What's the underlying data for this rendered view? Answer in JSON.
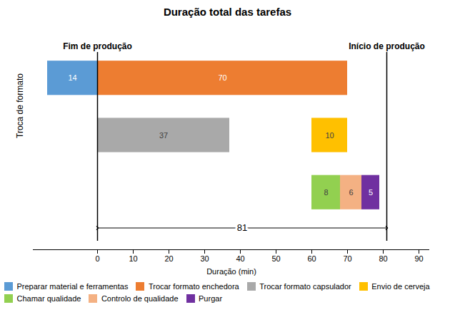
{
  "chart_data": {
    "type": "bar",
    "orientation": "horizontal",
    "title": "Duração total das tarefas",
    "xlabel": "Duração (min)",
    "ylabel": "Troca de formato",
    "categories": [
      null,
      null,
      null
    ],
    "xlim": [
      -18,
      93
    ],
    "xticks": [
      0,
      10,
      20,
      30,
      40,
      50,
      60,
      70,
      80,
      90
    ],
    "data_labels": true,
    "legend": "bottom",
    "series": [
      {
        "name": "Preparar material e ferramentas",
        "color": "#5B9BD5",
        "starts": [
          -14,
          null,
          null
        ],
        "values": [
          14,
          null,
          null
        ]
      },
      {
        "name": "Trocar formato enchedora",
        "color": "#ED7D31",
        "starts": [
          0,
          null,
          null
        ],
        "values": [
          70,
          null,
          null
        ]
      },
      {
        "name": "Trocar formato capsulador",
        "color": "#A9A9A9",
        "starts": [
          null,
          0,
          null
        ],
        "values": [
          null,
          37,
          null
        ]
      },
      {
        "name": "Envio de cerveja",
        "color": "#FFC000",
        "starts": [
          null,
          60,
          null
        ],
        "values": [
          null,
          10,
          null
        ]
      },
      {
        "name": "Chamar qualidade",
        "color": "#92D050",
        "starts": [
          null,
          null,
          60
        ],
        "values": [
          null,
          null,
          8
        ]
      },
      {
        "name": "Controlo de qualidade",
        "color": "#F4B183",
        "starts": [
          null,
          null,
          68
        ],
        "values": [
          null,
          null,
          6
        ]
      },
      {
        "name": "Purgar",
        "color": "#7030A0",
        "starts": [
          null,
          null,
          74
        ],
        "values": [
          null,
          null,
          5
        ]
      }
    ],
    "annotations": [
      {
        "x": 0,
        "text": "Fim de produção"
      },
      {
        "x": 81,
        "text": "Início de produção"
      }
    ],
    "span": {
      "from": 0,
      "to": 81,
      "value": 81
    }
  }
}
